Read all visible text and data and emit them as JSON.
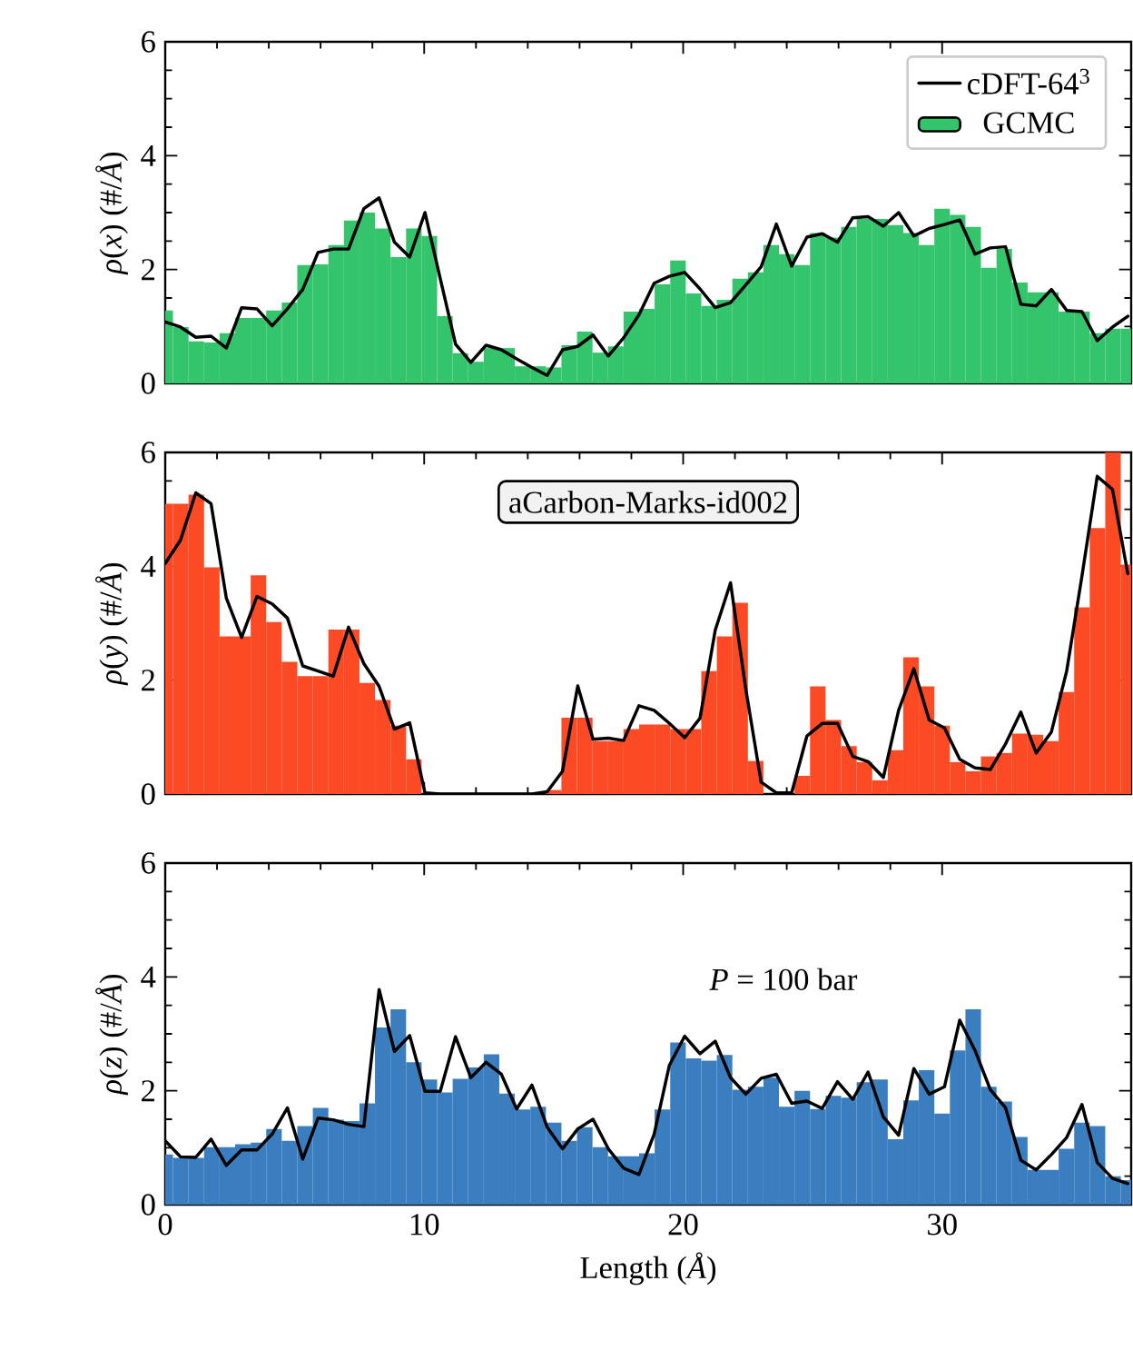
{
  "chart_data": [
    {
      "type": "histogram",
      "ylabel": "*ρ*(*x*) (#/*Å*)",
      "xlim": [
        0,
        37.3
      ],
      "ylim": [
        0,
        6
      ],
      "xticks": [
        0,
        10,
        20,
        30
      ],
      "yticks": [
        0,
        2,
        4,
        6
      ],
      "tick_labels": "y",
      "legend": "top right",
      "bins": [
        0,
        0.3,
        0.9,
        1.5,
        2.1,
        2.7,
        3.3,
        3.9,
        4.5,
        5.1,
        5.7,
        6.3,
        6.9,
        7.5,
        8.1,
        8.7,
        9.3,
        9.9,
        10.5,
        11.1,
        11.7,
        12.3,
        12.9,
        13.5,
        14.1,
        14.7,
        15.3,
        15.9,
        16.5,
        17.1,
        17.7,
        18.3,
        18.9,
        19.5,
        20.1,
        20.7,
        21.3,
        21.9,
        22.5,
        23.1,
        23.7,
        24.3,
        24.9,
        25.5,
        26.1,
        26.7,
        27.3,
        27.9,
        28.5,
        29.1,
        29.7,
        30.3,
        30.9,
        31.5,
        32.1,
        32.7,
        33.3,
        33.9,
        34.5,
        35.1,
        35.7,
        36.3,
        36.9,
        37.3
      ],
      "series": [
        {
          "name": "GCMC",
          "color": "#33c46c",
          "values": [
            1.28,
            0.99,
            0.74,
            0.72,
            0.88,
            1.15,
            1.15,
            1.28,
            1.42,
            2.08,
            2.09,
            2.43,
            2.86,
            3.0,
            2.72,
            2.22,
            2.72,
            2.59,
            1.18,
            0.53,
            0.38,
            0.62,
            0.62,
            0.3,
            0.3,
            0.28,
            0.67,
            0.91,
            0.54,
            0.65,
            1.26,
            1.31,
            1.74,
            2.16,
            1.58,
            1.36,
            1.47,
            1.84,
            1.95,
            2.43,
            2.27,
            2.08,
            2.64,
            2.56,
            2.75,
            2.89,
            2.89,
            2.78,
            2.64,
            2.43,
            3.07,
            2.96,
            2.75,
            2.03,
            2.36,
            1.77,
            1.6,
            1.6,
            1.26,
            1.26,
            0.88,
            0.96,
            0.96
          ]
        },
        {
          "name": "cDFT-64$^{3}$",
          "type": "line",
          "color": "#000000",
          "x": [
            0,
            0.59,
            1.18,
            1.77,
            2.36,
            2.95,
            3.54,
            4.13,
            4.72,
            5.31,
            5.9,
            6.49,
            7.08,
            7.67,
            8.26,
            8.85,
            9.44,
            10.03,
            10.62,
            11.21,
            11.8,
            12.39,
            12.98,
            13.57,
            14.16,
            14.75,
            15.34,
            15.93,
            16.52,
            17.11,
            17.7,
            18.29,
            18.88,
            19.47,
            20.06,
            20.65,
            21.24,
            21.83,
            22.42,
            23.01,
            23.6,
            24.19,
            24.78,
            25.37,
            25.96,
            26.55,
            27.14,
            27.73,
            28.32,
            28.91,
            29.5,
            30.09,
            30.68,
            31.27,
            31.86,
            32.45,
            33.04,
            33.63,
            34.22,
            34.81,
            35.4,
            35.99,
            36.58,
            37.17
          ],
          "values": [
            1.08,
            0.99,
            0.81,
            0.83,
            0.62,
            1.33,
            1.31,
            1.01,
            1.31,
            1.65,
            2.3,
            2.36,
            2.36,
            3.07,
            3.26,
            2.48,
            2.22,
            3.0,
            1.84,
            0.69,
            0.37,
            0.67,
            0.59,
            0.43,
            0.28,
            0.14,
            0.59,
            0.65,
            0.85,
            0.48,
            0.8,
            1.2,
            1.76,
            1.88,
            1.95,
            1.66,
            1.33,
            1.42,
            1.73,
            2.05,
            2.8,
            2.06,
            2.57,
            2.63,
            2.48,
            2.91,
            2.93,
            2.76,
            3.0,
            2.59,
            2.72,
            2.79,
            2.87,
            2.27,
            2.38,
            2.4,
            1.39,
            1.36,
            1.65,
            1.28,
            1.26,
            0.75,
            0.99,
            1.18
          ]
        }
      ]
    },
    {
      "type": "histogram",
      "ylabel": "*ρ*(*y*) (#/*Å*)",
      "xlim": [
        0,
        37.3
      ],
      "ylim": [
        0,
        6
      ],
      "xticks": [
        0,
        10,
        20,
        30
      ],
      "yticks": [
        0,
        2,
        4,
        6
      ],
      "tick_labels": "y",
      "annotations": [
        "aCarbon-Marks-id002"
      ],
      "bins": [
        0,
        0.3,
        0.9,
        1.5,
        2.1,
        2.7,
        3.3,
        3.9,
        4.5,
        5.1,
        5.7,
        6.3,
        6.9,
        7.5,
        8.1,
        8.7,
        9.3,
        9.9,
        14.7,
        15.3,
        15.9,
        16.5,
        17.1,
        17.7,
        18.3,
        18.9,
        19.5,
        20.1,
        20.7,
        21.3,
        21.9,
        22.5,
        23.1,
        24.3,
        24.9,
        25.5,
        26.1,
        26.7,
        27.3,
        27.9,
        28.5,
        29.1,
        29.7,
        30.3,
        30.9,
        31.5,
        32.1,
        32.7,
        33.3,
        33.9,
        34.5,
        35.1,
        35.7,
        36.3,
        36.9,
        37.3
      ],
      "series": [
        {
          "color": "#fc4a24",
          "values": [
            5.1,
            5.1,
            5.26,
            3.98,
            2.77,
            2.77,
            3.84,
            3.02,
            2.32,
            2.07,
            2.07,
            2.89,
            2.89,
            1.95,
            1.65,
            1.2,
            0.61,
            0,
            0.07,
            1.34,
            1.34,
            0.93,
            0.93,
            1.14,
            1.22,
            1.22,
            1.14,
            1.14,
            2.16,
            2.77,
            3.36,
            0.58,
            0,
            0.32,
            1.89,
            1.3,
            0.84,
            0.56,
            0.24,
            0.77,
            2.4,
            1.89,
            1.2,
            0.56,
            0.4,
            0.66,
            0.72,
            1.06,
            1.04,
            0.93,
            1.79,
            3.28,
            4.67,
            6.0,
            4.03
          ]
        },
        {
          "type": "line",
          "color": "#000000",
          "x": [
            0,
            0.59,
            1.18,
            1.77,
            2.36,
            2.95,
            3.54,
            4.13,
            4.72,
            5.31,
            5.9,
            6.49,
            7.08,
            7.67,
            8.26,
            8.85,
            9.44,
            10.03,
            10.62,
            11.21,
            11.8,
            12.39,
            12.98,
            13.57,
            14.16,
            14.75,
            15.34,
            15.93,
            16.52,
            17.11,
            17.7,
            18.29,
            18.88,
            19.47,
            20.06,
            20.65,
            21.24,
            21.83,
            22.42,
            23.01,
            23.6,
            24.19,
            24.78,
            25.37,
            25.96,
            26.55,
            27.14,
            27.73,
            28.32,
            28.91,
            29.5,
            30.09,
            30.68,
            31.27,
            31.86,
            32.45,
            33.04,
            33.63,
            34.22,
            34.81,
            35.4,
            35.99,
            36.58,
            37.17
          ],
          "values": [
            4.05,
            4.46,
            5.29,
            5.1,
            3.44,
            2.75,
            3.47,
            3.34,
            3.09,
            2.25,
            2.16,
            2.07,
            2.93,
            2.29,
            1.89,
            1.14,
            1.25,
            0.02,
            0,
            0,
            0,
            0,
            0,
            0,
            0,
            0.04,
            0.4,
            1.9,
            0.96,
            0.98,
            0.94,
            1.55,
            1.47,
            1.24,
            0.99,
            1.33,
            2.88,
            3.71,
            1.84,
            0.21,
            0.02,
            0.02,
            1.02,
            1.24,
            1.24,
            0.66,
            0.57,
            0.29,
            1.47,
            2.2,
            1.3,
            1.16,
            0.61,
            0.46,
            0.43,
            0.88,
            1.44,
            0.72,
            1.09,
            2.16,
            3.83,
            5.58,
            5.35,
            3.87
          ]
        }
      ]
    },
    {
      "type": "histogram",
      "xlabel": "Length (*Å*)",
      "ylabel": "*ρ*(*z*) (#/*Å*)",
      "xlim": [
        0,
        37.3
      ],
      "ylim": [
        0,
        6
      ],
      "xticks": [
        0,
        10,
        20,
        30
      ],
      "yticks": [
        0,
        2,
        4,
        6
      ],
      "annotations": [
        "*P* = 100 bar"
      ],
      "bins": [
        0,
        0.3,
        0.9,
        1.5,
        2.1,
        2.7,
        3.3,
        3.9,
        4.5,
        5.1,
        5.7,
        6.3,
        6.9,
        7.5,
        8.1,
        8.7,
        9.3,
        9.9,
        10.5,
        11.1,
        11.7,
        12.3,
        12.9,
        13.5,
        14.1,
        14.7,
        15.3,
        15.9,
        16.5,
        17.1,
        17.7,
        18.3,
        18.9,
        19.5,
        20.1,
        20.7,
        21.3,
        21.9,
        22.5,
        23.1,
        23.7,
        24.3,
        24.9,
        25.5,
        26.1,
        26.7,
        27.3,
        27.9,
        28.5,
        29.1,
        29.7,
        30.3,
        30.9,
        31.5,
        32.1,
        32.7,
        33.3,
        33.9,
        34.5,
        35.1,
        35.7,
        36.3,
        36.9,
        37.3
      ],
      "series": [
        {
          "color": "#3a7ebf",
          "values": [
            0.88,
            0.82,
            0.82,
            1.01,
            1.01,
            1.06,
            1.09,
            1.33,
            1.12,
            1.38,
            1.7,
            1.49,
            1.47,
            1.78,
            3.11,
            3.43,
            2.5,
            2.2,
            1.97,
            2.21,
            2.41,
            2.64,
            1.95,
            1.67,
            1.72,
            1.44,
            1.12,
            1.36,
            1.01,
            0.85,
            0.85,
            0.9,
            1.67,
            2.85,
            2.57,
            2.53,
            2.63,
            2.02,
            2.07,
            2.23,
            1.72,
            2.0,
            1.68,
            1.91,
            1.88,
            2.15,
            2.2,
            1.15,
            1.83,
            2.36,
            1.6,
            2.71,
            3.43,
            2.07,
            1.81,
            1.19,
            0.61,
            0.61,
            0.98,
            1.44,
            1.38,
            0.5,
            0.43
          ]
        },
        {
          "type": "line",
          "color": "#000000",
          "x": [
            0,
            0.59,
            1.18,
            1.77,
            2.36,
            2.95,
            3.54,
            4.13,
            4.72,
            5.31,
            5.9,
            6.49,
            7.08,
            7.67,
            8.26,
            8.85,
            9.44,
            10.03,
            10.62,
            11.21,
            11.8,
            12.39,
            12.98,
            13.57,
            14.16,
            14.75,
            15.34,
            15.93,
            16.52,
            17.11,
            17.7,
            18.29,
            18.88,
            19.47,
            20.06,
            20.65,
            21.24,
            21.83,
            22.42,
            23.01,
            23.6,
            24.19,
            24.78,
            25.37,
            25.96,
            26.55,
            27.14,
            27.73,
            28.32,
            28.91,
            29.5,
            30.09,
            30.68,
            31.27,
            31.86,
            32.45,
            33.04,
            33.63,
            34.22,
            34.81,
            35.4,
            35.99,
            36.58,
            37.17
          ],
          "values": [
            1.12,
            0.84,
            0.83,
            1.15,
            0.69,
            0.96,
            0.96,
            1.24,
            1.7,
            0.8,
            1.52,
            1.49,
            1.41,
            1.37,
            3.78,
            2.69,
            2.97,
            1.99,
            1.99,
            2.95,
            2.23,
            2.5,
            2.29,
            1.68,
            2.1,
            1.36,
            0.98,
            1.33,
            1.5,
            0.98,
            0.64,
            0.53,
            1.24,
            2.45,
            2.96,
            2.65,
            2.87,
            2.23,
            1.94,
            2.22,
            2.29,
            1.78,
            1.82,
            1.69,
            2.16,
            1.85,
            2.33,
            1.54,
            1.22,
            2.39,
            1.94,
            2.07,
            3.24,
            2.71,
            2.02,
            1.7,
            0.78,
            0.61,
            0.88,
            1.18,
            1.76,
            0.74,
            0.46,
            0.37
          ]
        }
      ]
    }
  ]
}
